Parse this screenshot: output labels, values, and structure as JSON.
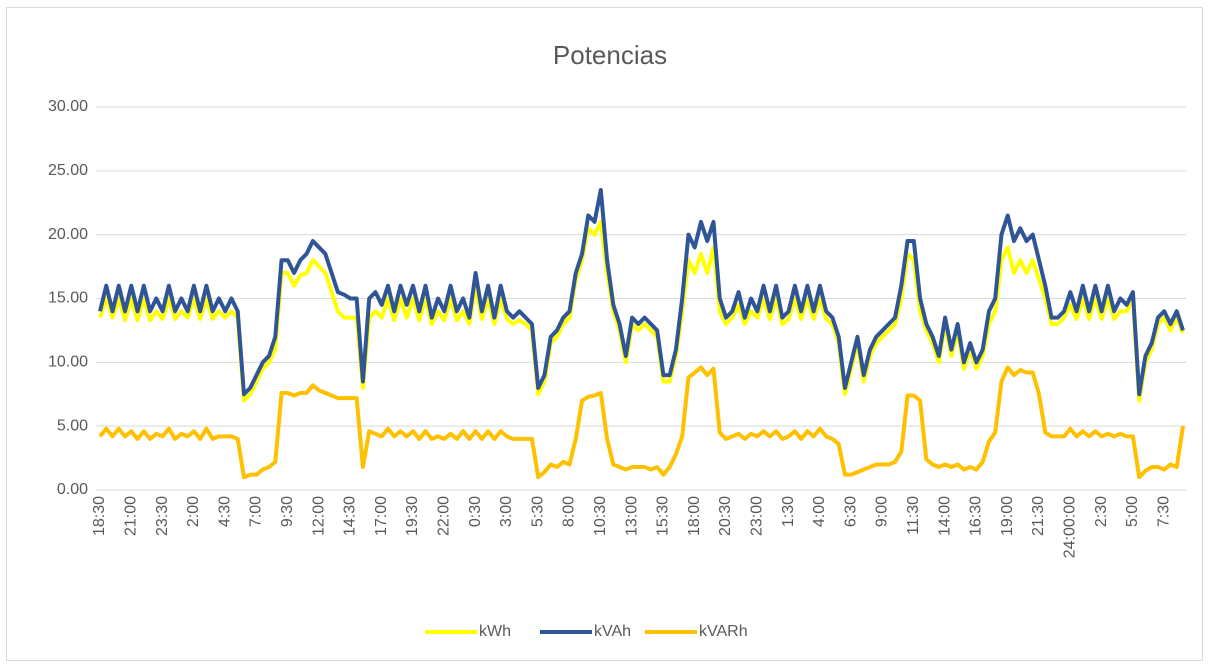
{
  "chart_data": {
    "type": "line",
    "title": "Potencias",
    "categories": [
      "18:30",
      null,
      null,
      null,
      null,
      "21:00",
      null,
      null,
      null,
      null,
      "23:30",
      null,
      null,
      null,
      null,
      "2:00",
      null,
      null,
      null,
      null,
      "4:30",
      null,
      null,
      null,
      null,
      "7:00",
      null,
      null,
      null,
      null,
      "9:30",
      null,
      null,
      null,
      null,
      "12:00",
      null,
      null,
      null,
      null,
      "14:30",
      null,
      null,
      null,
      null,
      "17:00",
      null,
      null,
      null,
      null,
      "19:30",
      null,
      null,
      null,
      null,
      "22:00",
      null,
      null,
      null,
      null,
      "0:30",
      null,
      null,
      null,
      null,
      "3:00",
      null,
      null,
      null,
      null,
      "5:30",
      null,
      null,
      null,
      null,
      "8:00",
      null,
      null,
      null,
      null,
      "10:30",
      null,
      null,
      null,
      null,
      "13:00",
      null,
      null,
      null,
      null,
      "15:30",
      null,
      null,
      null,
      null,
      "18:00",
      null,
      null,
      null,
      null,
      "20:30",
      null,
      null,
      null,
      null,
      "23:00",
      null,
      null,
      null,
      null,
      "1:30",
      null,
      null,
      null,
      null,
      "4:00",
      null,
      null,
      null,
      null,
      "6:30",
      null,
      null,
      null,
      null,
      "9:00",
      null,
      null,
      null,
      null,
      "11:30",
      null,
      null,
      null,
      null,
      "14:00",
      null,
      null,
      null,
      null,
      "16:30",
      null,
      null,
      null,
      null,
      "19:00",
      null,
      null,
      null,
      null,
      "21:30",
      null,
      null,
      null,
      null,
      "24:00:00",
      null,
      null,
      null,
      null,
      "2:30",
      null,
      null,
      null,
      null,
      "5:00",
      null,
      null,
      null,
      null,
      "7:30",
      null,
      null,
      null
    ],
    "series": [
      {
        "name": "kWh",
        "color": "#ffff00",
        "values": [
          13.5,
          15,
          13.5,
          15,
          13.3,
          15,
          13.3,
          15,
          13.3,
          14,
          13.4,
          15,
          13.4,
          14,
          13.5,
          15,
          13.4,
          15,
          13.4,
          14,
          13.5,
          14,
          13.5,
          7,
          7.5,
          8.5,
          9.5,
          10,
          11,
          17,
          17,
          16,
          16.8,
          17,
          18,
          17.5,
          17,
          15.5,
          14,
          13.5,
          13.5,
          13.5,
          8,
          13.5,
          14,
          13.5,
          15,
          13.3,
          15,
          13.5,
          15,
          13.3,
          15,
          13,
          14,
          13.3,
          15,
          13.3,
          14,
          13,
          16,
          13.4,
          15,
          13,
          15,
          13.4,
          13,
          13.3,
          13,
          12.5,
          7.5,
          8.5,
          11.5,
          12,
          13,
          13.5,
          16.5,
          18,
          20.5,
          20,
          21,
          17,
          14,
          12.5,
          10,
          13,
          12.5,
          13,
          12.5,
          12,
          8.5,
          8.5,
          10.5,
          14,
          18,
          17,
          18.5,
          17,
          19,
          14,
          13,
          13.5,
          14.5,
          13,
          14,
          13.5,
          15,
          13.4,
          15,
          13,
          13.4,
          15,
          13.4,
          15,
          13.4,
          15,
          13.4,
          13,
          11.5,
          7.5,
          9.5,
          11.5,
          8.5,
          10.5,
          11.5,
          12,
          12.5,
          13,
          15,
          18.5,
          18,
          14,
          12.5,
          11.5,
          10,
          13,
          10.5,
          12.5,
          9.5,
          11,
          9.5,
          10.5,
          13,
          14,
          18,
          19,
          17,
          18,
          17,
          18,
          16.5,
          15,
          13,
          13,
          13.5,
          14.5,
          13.4,
          15,
          13.4,
          15,
          13.4,
          15,
          13.4,
          14,
          14,
          15,
          7,
          10,
          11,
          13,
          13.5,
          12.5,
          13.5,
          12.3
        ]
      },
      {
        "name": "kVAh",
        "color": "#2f5597",
        "values": [
          14,
          16,
          14,
          16,
          14,
          16,
          14,
          16,
          14,
          15,
          14,
          16,
          14,
          15,
          14,
          16,
          14,
          16,
          14,
          15,
          14,
          15,
          14,
          7.5,
          8,
          9,
          10,
          10.5,
          12,
          18,
          18,
          17,
          18,
          18.5,
          19.5,
          19,
          18.5,
          17,
          15.5,
          15.3,
          15,
          15,
          8.5,
          15,
          15.5,
          14.5,
          16,
          14,
          16,
          14.5,
          16,
          14,
          16,
          13.5,
          15,
          14,
          16,
          14,
          15,
          13.5,
          17,
          14,
          16,
          13.5,
          16,
          14,
          13.5,
          14,
          13.5,
          13,
          8,
          9,
          12,
          12.5,
          13.5,
          14,
          17,
          18.5,
          21.5,
          21,
          23.5,
          18,
          14.5,
          13,
          10.5,
          13.5,
          13,
          13.5,
          13,
          12.5,
          9,
          9,
          11,
          15,
          20,
          19,
          21,
          19.5,
          21,
          15,
          13.5,
          14,
          15.5,
          13.5,
          15,
          14,
          16,
          14,
          16,
          13.5,
          14,
          16,
          14,
          16,
          14,
          16,
          14,
          13.5,
          12,
          8,
          10,
          12,
          9,
          11,
          12,
          12.5,
          13,
          13.5,
          16,
          19.5,
          19.5,
          15,
          13,
          12,
          10.5,
          13.5,
          11,
          13,
          10,
          11.5,
          10,
          11,
          14,
          15,
          20,
          21.5,
          19.5,
          20.5,
          19.5,
          20,
          18,
          16,
          13.5,
          13.5,
          14,
          15.5,
          14,
          16,
          14,
          16,
          14,
          16,
          14,
          15,
          14.5,
          15.5,
          7.5,
          10.5,
          11.5,
          13.5,
          14,
          13,
          14,
          12.5
        ]
      },
      {
        "name": "kVARh",
        "color": "#ffc000",
        "values": [
          4.2,
          4.8,
          4.2,
          4.8,
          4.2,
          4.6,
          4,
          4.6,
          4,
          4.4,
          4.2,
          4.8,
          4,
          4.4,
          4.2,
          4.6,
          4,
          4.8,
          4,
          4.2,
          4.2,
          4.2,
          4,
          1,
          1.2,
          1.2,
          1.6,
          1.8,
          2.2,
          7.6,
          7.6,
          7.4,
          7.6,
          7.6,
          8.2,
          7.8,
          7.6,
          7.4,
          7.2,
          7.2,
          7.2,
          7.2,
          1.8,
          4.6,
          4.4,
          4.2,
          4.8,
          4.2,
          4.6,
          4.2,
          4.6,
          4,
          4.6,
          4,
          4.2,
          4,
          4.4,
          4,
          4.6,
          4,
          4.6,
          4,
          4.6,
          4,
          4.6,
          4.2,
          4,
          4,
          4,
          4,
          1,
          1.4,
          2,
          1.8,
          2.2,
          2,
          4,
          7,
          7.3,
          7.4,
          7.6,
          4,
          2,
          1.8,
          1.6,
          1.8,
          1.8,
          1.8,
          1.6,
          1.8,
          1.2,
          1.8,
          2.8,
          4.2,
          8.8,
          9.2,
          9.6,
          9,
          9.5,
          4.5,
          4,
          4.2,
          4.4,
          4,
          4.4,
          4.2,
          4.6,
          4.2,
          4.6,
          4,
          4.2,
          4.6,
          4,
          4.6,
          4.2,
          4.8,
          4.2,
          4,
          3.6,
          1.2,
          1.2,
          1.4,
          1.6,
          1.8,
          2,
          2,
          2,
          2.2,
          3,
          7.4,
          7.4,
          7,
          2.4,
          2,
          1.8,
          2,
          1.8,
          2,
          1.6,
          1.8,
          1.6,
          2.2,
          3.8,
          4.5,
          8.5,
          9.6,
          9,
          9.4,
          9.2,
          9.2,
          7.5,
          4.5,
          4.2,
          4.2,
          4.2,
          4.8,
          4.2,
          4.6,
          4.2,
          4.6,
          4.2,
          4.4,
          4.2,
          4.4,
          4.2,
          4.2,
          1,
          1.5,
          1.8,
          1.8,
          1.6,
          2,
          1.8,
          5
        ]
      }
    ],
    "ylim": [
      0,
      30
    ],
    "yticks": [
      {
        "value": 0,
        "label": "0.00"
      },
      {
        "value": 5,
        "label": "5.00"
      },
      {
        "value": 10,
        "label": "10.00"
      },
      {
        "value": 15,
        "label": "15.00"
      },
      {
        "value": 20,
        "label": "20.00"
      },
      {
        "value": 25,
        "label": "25.00"
      },
      {
        "value": 30,
        "label": "30.00"
      }
    ],
    "grid": true,
    "legend": "bottom"
  }
}
